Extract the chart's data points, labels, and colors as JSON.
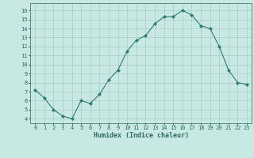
{
  "x": [
    0,
    1,
    2,
    3,
    4,
    5,
    6,
    7,
    8,
    9,
    10,
    11,
    12,
    13,
    14,
    15,
    16,
    17,
    18,
    19,
    20,
    21,
    22,
    23
  ],
  "y": [
    7.2,
    6.3,
    5.0,
    4.3,
    4.0,
    6.0,
    5.7,
    6.7,
    8.3,
    9.4,
    11.5,
    12.7,
    13.2,
    14.5,
    15.3,
    15.3,
    16.0,
    15.5,
    14.3,
    14.0,
    12.0,
    9.4,
    8.0,
    7.8
  ],
  "line_color": "#2e7d6e",
  "marker": "D",
  "marker_size": 2.0,
  "bg_color": "#c8e8e3",
  "grid_color": "#a8ccc8",
  "xlabel": "Humidex (Indice chaleur)",
  "ylabel_ticks": [
    4,
    5,
    6,
    7,
    8,
    9,
    10,
    11,
    12,
    13,
    14,
    15,
    16
  ],
  "ylim": [
    3.5,
    16.8
  ],
  "xlim": [
    -0.5,
    23.5
  ],
  "tick_label_color": "#2e6b60",
  "xlabel_color": "#2e6b60",
  "tick_fontsize": 5.0,
  "xlabel_fontsize": 6.0,
  "linewidth": 0.8
}
